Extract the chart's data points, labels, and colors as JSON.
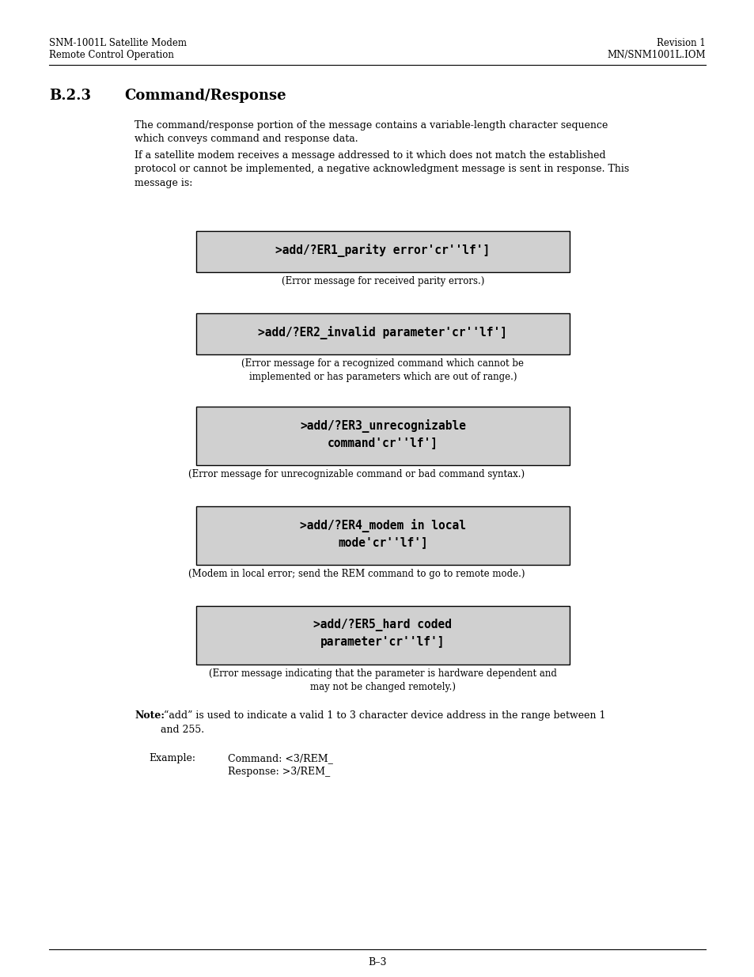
{
  "header_left_line1": "SNM-1001L Satellite Modem",
  "header_left_line2": "Remote Control Operation",
  "header_right_line1": "Revision 1",
  "header_right_line2": "MN/SNM1001L.IOM",
  "section_number": "B.2.3",
  "section_title": "Command/Response",
  "para1": "The command/response portion of the message contains a variable-length character sequence\nwhich conveys command and response data.",
  "para2": "If a satellite modem receives a message addressed to it which does not match the established\nprotocol or cannot be implemented, a negative acknowledgment message is sent in response. This\nmessage is:",
  "boxes": [
    {
      "lines": [
        ">add/?ER1_parity error'cr''lf']"
      ],
      "caption": "(Error message for received parity errors.)",
      "caption_center": true
    },
    {
      "lines": [
        ">add/?ER2_invalid parameter'cr''lf']"
      ],
      "caption": "(Error message for a recognized command which cannot be\nimplemented or has parameters which are out of range.)",
      "caption_center": true
    },
    {
      "lines": [
        ">add/?ER3_unrecognizable",
        "command'cr''lf']"
      ],
      "caption": "(Error message for unrecognizable command or bad command syntax.)",
      "caption_center": false
    },
    {
      "lines": [
        ">add/?ER4_modem in local",
        "mode'cr''lf']"
      ],
      "caption": "(Modem in local error; send the REM command to go to remote mode.)",
      "caption_center": false
    },
    {
      "lines": [
        ">add/?ER5_hard coded",
        "parameter'cr''lf']"
      ],
      "caption": "(Error message indicating that the parameter is hardware dependent and\nmay not be changed remotely.)",
      "caption_center": true
    }
  ],
  "note_bold": "Note:",
  "note_text": " “add” is used to indicate a valid 1 to 3 character device address in the range between 1\nand 255.",
  "example_label": "Example:",
  "example_command": "Command: <3/REM_",
  "example_response": "Response: >3/REM_",
  "footer_text": "B–3",
  "bg_color": "#ffffff",
  "box_bg_color": "#d0d0d0",
  "box_border_color": "#000000",
  "text_color": "#000000",
  "mono_font": "monospace",
  "body_font": "DejaVu Serif"
}
